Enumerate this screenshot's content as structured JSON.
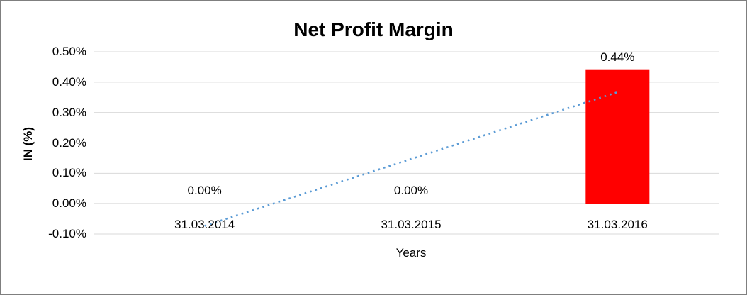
{
  "chart_data": {
    "type": "bar",
    "title": "Net Profit Margin",
    "xlabel": "Years",
    "ylabel": "IN (%)",
    "categories": [
      "31.03.2014",
      "31.03.2015",
      "31.03.2016"
    ],
    "values": [
      0.0,
      0.0,
      0.44
    ],
    "value_labels": [
      "0.00%",
      "0.00%",
      "0.44%"
    ],
    "y_ticks": [
      "0.50%",
      "0.40%",
      "0.30%",
      "0.20%",
      "0.10%",
      "0.00%",
      "-0.10%"
    ],
    "y_tick_values": [
      0.5,
      0.4,
      0.3,
      0.2,
      0.1,
      0.0,
      -0.1
    ],
    "ylim": [
      -0.1,
      0.5
    ],
    "grid": true,
    "legend": "none",
    "bar_color": "#FF0000",
    "gridline_color": "#D9D9D9",
    "axis_line_color": "#BFBFBF",
    "trendline": {
      "type": "linear",
      "style": "dotted",
      "color": "#5B9BD5",
      "start_value": -0.073,
      "end_value": 0.367
    }
  }
}
